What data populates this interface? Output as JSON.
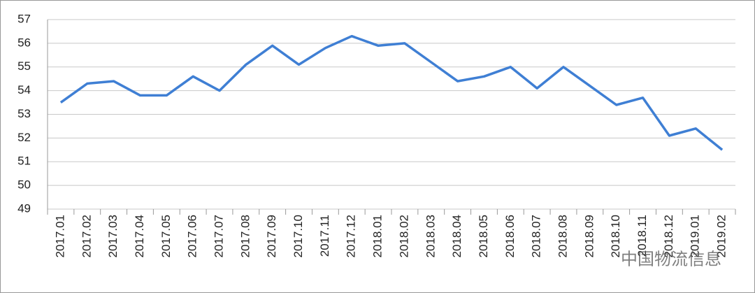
{
  "chart_data": {
    "type": "line",
    "categories": [
      "2017.01",
      "2017.02",
      "2017.03",
      "2017.04",
      "2017.05",
      "2017.06",
      "2017.07",
      "2017.08",
      "2017.09",
      "2017.10",
      "2017.11",
      "2017.12",
      "2018.01",
      "2018.02",
      "2018.03",
      "2018.04",
      "2018.05",
      "2018.06",
      "2018.07",
      "2018.08",
      "2018.09",
      "2018.10",
      "2018.11",
      "2018.12",
      "2019.01",
      "2019.02"
    ],
    "values": [
      53.5,
      54.3,
      54.4,
      53.8,
      53.8,
      54.6,
      54.0,
      55.1,
      55.9,
      55.1,
      55.8,
      56.3,
      55.9,
      56.0,
      55.2,
      54.4,
      54.6,
      55.0,
      54.1,
      55.0,
      54.2,
      53.4,
      53.7,
      52.1,
      52.4,
      51.5
    ],
    "color": "#3f7fd4",
    "ylim": [
      49,
      57
    ],
    "yticks": [
      49,
      50,
      51,
      52,
      53,
      54,
      55,
      56,
      57
    ],
    "grid": true,
    "watermark": "中国物流信息"
  }
}
